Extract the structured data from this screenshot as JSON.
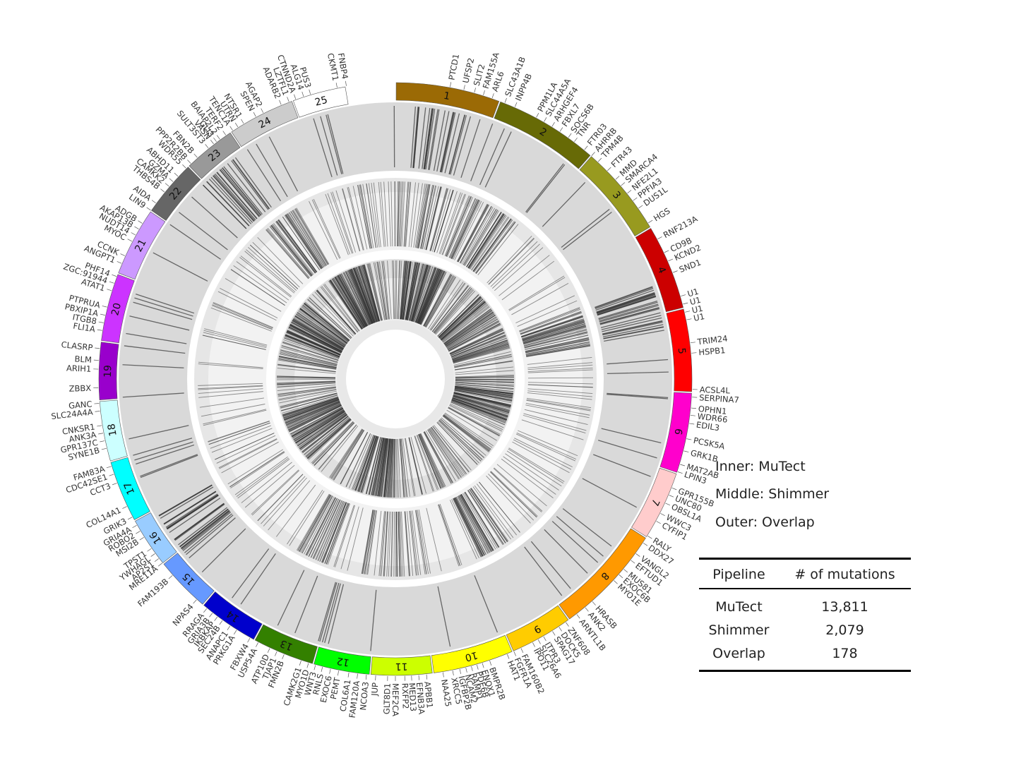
{
  "chromosomes": [
    {
      "label": "1",
      "color": "#9b6a05"
    },
    {
      "label": "2",
      "color": "#676a06"
    },
    {
      "label": "3",
      "color": "#989a1f"
    },
    {
      "label": "4",
      "color": "#cc0000"
    },
    {
      "label": "5",
      "color": "#ff0000"
    },
    {
      "label": "6",
      "color": "#ff00cc"
    },
    {
      "label": "7",
      "color": "#ffcccc"
    },
    {
      "label": "8",
      "color": "#ff9900"
    },
    {
      "label": "9",
      "color": "#ffcc00"
    },
    {
      "label": "10",
      "color": "#ffff00"
    },
    {
      "label": "11",
      "color": "#ccff00"
    },
    {
      "label": "12",
      "color": "#00ff00"
    },
    {
      "label": "13",
      "color": "#338000"
    },
    {
      "label": "14",
      "color": "#0000cc"
    },
    {
      "label": "15",
      "color": "#6699ff"
    },
    {
      "label": "16",
      "color": "#99ccff"
    },
    {
      "label": "17",
      "color": "#00ffff"
    },
    {
      "label": "18",
      "color": "#ccffff"
    },
    {
      "label": "19",
      "color": "#9900cc"
    },
    {
      "label": "20",
      "color": "#cc33ff"
    },
    {
      "label": "21",
      "color": "#cc99ff"
    },
    {
      "label": "22",
      "color": "#666666"
    },
    {
      "label": "23",
      "color": "#999999"
    },
    {
      "label": "24",
      "color": "#cccccc"
    },
    {
      "label": "25",
      "color": "#ffffff"
    }
  ],
  "genes": [
    {
      "name": "PTCD1",
      "angle": 10.6
    },
    {
      "name": "UFSP2",
      "angle": 13.3
    },
    {
      "name": "SLIT2",
      "angle": 15.4
    },
    {
      "name": "FAM155A",
      "angle": 17.2
    },
    {
      "name": "ARL6",
      "angle": 19.0
    },
    {
      "name": "SLC43A1B",
      "angle": 21.6
    },
    {
      "name": "INPP4B",
      "angle": 23.7
    },
    {
      "name": "PPM1LA",
      "angle": 28.3
    },
    {
      "name": "SLC44A5A",
      "angle": 30.0
    },
    {
      "name": "ARHGEF4",
      "angle": 31.8
    },
    {
      "name": "FBXL7",
      "angle": 33.6
    },
    {
      "name": "SOCS6B",
      "angle": 35.6
    },
    {
      "name": "TNR",
      "angle": 37.0
    },
    {
      "name": "FTR03",
      "angle": 39.5
    },
    {
      "name": "AHRRB",
      "angle": 41.3
    },
    {
      "name": "TPM4B",
      "angle": 43.0
    },
    {
      "name": "FTR43",
      "angle": 45.5
    },
    {
      "name": "MMD",
      "angle": 47.8
    },
    {
      "name": "SMARCA4",
      "angle": 49.4
    },
    {
      "name": "NFE2L1",
      "angle": 51.3
    },
    {
      "name": "PPFIA3",
      "angle": 53.1
    },
    {
      "name": "DUS1L",
      "angle": 54.9
    },
    {
      "name": "HGS",
      "angle": 58.3
    },
    {
      "name": "RNF213A",
      "angle": 61.9
    },
    {
      "name": "CD9B",
      "angle": 64.8
    },
    {
      "name": "KCND2",
      "angle": 66.6
    },
    {
      "name": "SND1",
      "angle": 69.0
    },
    {
      "name": "U1",
      "angle": 73.8
    },
    {
      "name": "U1",
      "angle": 75.4
    },
    {
      "name": "U1",
      "angle": 77.0
    },
    {
      "name": "U1",
      "angle": 78.5
    },
    {
      "name": "TRIM24",
      "angle": 83.0
    },
    {
      "name": "HSPB1",
      "angle": 85.0
    },
    {
      "name": "ACSL4L",
      "angle": 92.0
    },
    {
      "name": "SERPINA7",
      "angle": 93.5
    },
    {
      "name": "OPHN1",
      "angle": 95.6
    },
    {
      "name": "WDR66",
      "angle": 97.0
    },
    {
      "name": "EDIL3",
      "angle": 98.6
    },
    {
      "name": "PCSK5A",
      "angle": 101.6
    },
    {
      "name": "GRK1B",
      "angle": 104.0
    },
    {
      "name": "MAT2AB",
      "angle": 106.7
    },
    {
      "name": "LPIN3",
      "angle": 108.2
    },
    {
      "name": "GPR155B",
      "angle": 111.5
    },
    {
      "name": "UNC80",
      "angle": 113.0
    },
    {
      "name": "OBSL1A",
      "angle": 114.7
    },
    {
      "name": "WWC3",
      "angle": 116.9
    },
    {
      "name": "CYFIP1",
      "angle": 118.6
    },
    {
      "name": "RALY",
      "angle": 121.9
    },
    {
      "name": "DDX27",
      "angle": 123.5
    },
    {
      "name": "VANGL2",
      "angle": 126.0
    },
    {
      "name": "EFTUD1",
      "angle": 127.6
    },
    {
      "name": "MUS81",
      "angle": 129.8
    },
    {
      "name": "EXOC6B",
      "angle": 131.2
    },
    {
      "name": "MYO1E",
      "angle": 132.7
    },
    {
      "name": "HRASB",
      "angle": 138.5
    },
    {
      "name": "ANK2",
      "angle": 140.3
    },
    {
      "name": "ARNTL1B",
      "angle": 142.4
    },
    {
      "name": "ZNF608",
      "angle": 145.0
    },
    {
      "name": "DOCK5",
      "angle": 146.6
    },
    {
      "name": "SPAG17",
      "angle": 148.1
    },
    {
      "name": "ITPR3",
      "angle": 150.1
    },
    {
      "name": "SLC26A6",
      "angle": 151.3
    },
    {
      "name": "IPO11",
      "angle": 152.5
    },
    {
      "name": "FAM160B2",
      "angle": 155.0
    },
    {
      "name": "FGFR1A",
      "angle": 156.5
    },
    {
      "name": "HAT1",
      "angle": 157.9
    },
    {
      "name": "BMPR2B",
      "angle": 161.5
    },
    {
      "name": "ENOX1",
      "angle": 163.0
    },
    {
      "name": "PDE6B",
      "angle": 164.1
    },
    {
      "name": "RAMP1",
      "angle": 165.2
    },
    {
      "name": "NCAM2",
      "angle": 166.3
    },
    {
      "name": "IGFBP2B",
      "angle": 167.5
    },
    {
      "name": "XRCC5",
      "angle": 168.9
    },
    {
      "name": "NAA25",
      "angle": 170.8
    },
    {
      "name": "APBB1",
      "angle": 174.0
    },
    {
      "name": "EFNB3A",
      "angle": 175.5
    },
    {
      "name": "MED13",
      "angle": 176.9
    },
    {
      "name": "RXFP2",
      "angle": 178.2
    },
    {
      "name": "MEF2CA",
      "angle": 180.0
    },
    {
      "name": "GLT8D1",
      "angle": 181.5
    },
    {
      "name": "JUP",
      "angle": 183.8
    },
    {
      "name": "NCOA3",
      "angle": 185.6
    },
    {
      "name": "FAM120A",
      "angle": 187.3
    },
    {
      "name": "COL6A1",
      "angle": 189.0
    },
    {
      "name": "PEMT",
      "angle": 191.0
    },
    {
      "name": "EXOC6",
      "angle": 192.6
    },
    {
      "name": "RNLS",
      "angle": 194.2
    },
    {
      "name": "WNT3",
      "angle": 195.6
    },
    {
      "name": "MYO1D",
      "angle": 197.0
    },
    {
      "name": "CAMK2G1",
      "angle": 198.5
    },
    {
      "name": "FMN2B",
      "angle": 202.0
    },
    {
      "name": "TJAP1",
      "angle": 203.5
    },
    {
      "name": "ATP10D",
      "angle": 205.0
    },
    {
      "name": "USP54A",
      "angle": 207.5
    },
    {
      "name": "FBXW4",
      "angle": 209.3
    },
    {
      "name": "PRKG1A",
      "angle": 212.3
    },
    {
      "name": "ANAPC1",
      "angle": 213.8
    },
    {
      "name": "SEC24B",
      "angle": 215.6
    },
    {
      "name": "IKBKAP",
      "angle": 216.8
    },
    {
      "name": "GRIA3B",
      "angle": 218.0
    },
    {
      "name": "RRAGA",
      "angle": 219.4
    },
    {
      "name": "NPAS4",
      "angle": 222.0
    },
    {
      "name": "FAM193B",
      "angle": 228.6
    },
    {
      "name": "MRE11A",
      "angle": 231.7
    },
    {
      "name": "AP2S1",
      "angle": 232.8
    },
    {
      "name": "YWHAGL",
      "angle": 234.0
    },
    {
      "name": "TPST1",
      "angle": 235.2
    },
    {
      "name": "MSI2B",
      "angle": 237.8
    },
    {
      "name": "ROBO2",
      "angle": 239.2
    },
    {
      "name": "GRIA4A",
      "angle": 240.5
    },
    {
      "name": "GRIK3",
      "angle": 242.3
    },
    {
      "name": "COL14A1",
      "angle": 244.6
    },
    {
      "name": "CCT3",
      "angle": 249.5
    },
    {
      "name": "CDC42SE1",
      "angle": 251.3
    },
    {
      "name": "FAM83A",
      "angle": 252.9
    },
    {
      "name": "SYNE1B",
      "angle": 256.5
    },
    {
      "name": "GPR137C",
      "angle": 258.0
    },
    {
      "name": "ANK3A",
      "angle": 259.5
    },
    {
      "name": "CNKSR1",
      "angle": 261.0
    },
    {
      "name": "SLC24A4A",
      "angle": 263.8
    },
    {
      "name": "GANC",
      "angle": 265.3
    },
    {
      "name": "ZBBX",
      "angle": 268.3
    },
    {
      "name": "ARIH1",
      "angle": 271.9
    },
    {
      "name": "BLM",
      "angle": 273.6
    },
    {
      "name": "CLASRP",
      "angle": 275.9
    },
    {
      "name": "FLI1A",
      "angle": 279.4
    },
    {
      "name": "ITGB8",
      "angle": 280.9
    },
    {
      "name": "PBXIP1A",
      "angle": 282.4
    },
    {
      "name": "PTPRUA",
      "angle": 284.0
    },
    {
      "name": "ATAT1",
      "angle": 287.3
    },
    {
      "name": "ZGC:91944",
      "angle": 288.8
    },
    {
      "name": "PHF14",
      "angle": 290.2
    },
    {
      "name": "ANGPT1",
      "angle": 292.9
    },
    {
      "name": "CCNK",
      "angle": 294.5
    },
    {
      "name": "MYOC",
      "angle": 297.6
    },
    {
      "name": "NUDT14",
      "angle": 299.0
    },
    {
      "name": "AKAP13B",
      "angle": 300.3
    },
    {
      "name": "ADGB",
      "angle": 301.6
    },
    {
      "name": "LIN9",
      "angle": 304.6
    },
    {
      "name": "AIDA",
      "angle": 306.3
    },
    {
      "name": "THBS4B",
      "angle": 309.0
    },
    {
      "name": "CAMKK2",
      "angle": 310.4
    },
    {
      "name": "GZMA",
      "angle": 311.6
    },
    {
      "name": "ABHD11",
      "angle": 313.0
    },
    {
      "name": "WDR55",
      "angle": 315.2
    },
    {
      "name": "PPP2R2BB",
      "angle": 316.5
    },
    {
      "name": "FBN2B",
      "angle": 318.2
    },
    {
      "name": "SULT3ST3",
      "angle": 321.0
    },
    {
      "name": "VASN",
      "angle": 322.3
    },
    {
      "name": "GLI3",
      "angle": 323.0
    },
    {
      "name": "BAIAP2L2",
      "angle": 323.8
    },
    {
      "name": "TERF2",
      "angle": 325.2
    },
    {
      "name": "TENC1A",
      "angle": 326.8
    },
    {
      "name": "UTRN",
      "angle": 328.0
    },
    {
      "name": "NTSR1",
      "angle": 329.3
    },
    {
      "name": "SPEN",
      "angle": 332.0
    },
    {
      "name": "AGAP2",
      "angle": 333.6
    },
    {
      "name": "ADARB2",
      "angle": 337.4
    },
    {
      "name": "LZTFL1",
      "angle": 339.0
    },
    {
      "name": "CTNND2A",
      "angle": 340.4
    },
    {
      "name": "ALG14",
      "angle": 342.0
    },
    {
      "name": "PUS3",
      "angle": 343.4
    },
    {
      "name": "CKMT1",
      "angle": 348.7
    },
    {
      "name": "FNBP4",
      "angle": 350.5
    }
  ],
  "legend": {
    "inner": "Inner: MuTect",
    "middle": "Middle: Shimmer",
    "outer": "Outer: Overlap"
  },
  "summary_table": {
    "headers": [
      "Pipeline",
      "# of mutations"
    ],
    "rows": [
      {
        "pipeline": "MuTect",
        "count": "13,811"
      },
      {
        "pipeline": "Shimmer",
        "count": "2,079"
      },
      {
        "pipeline": "Overlap",
        "count": "178"
      }
    ]
  }
}
